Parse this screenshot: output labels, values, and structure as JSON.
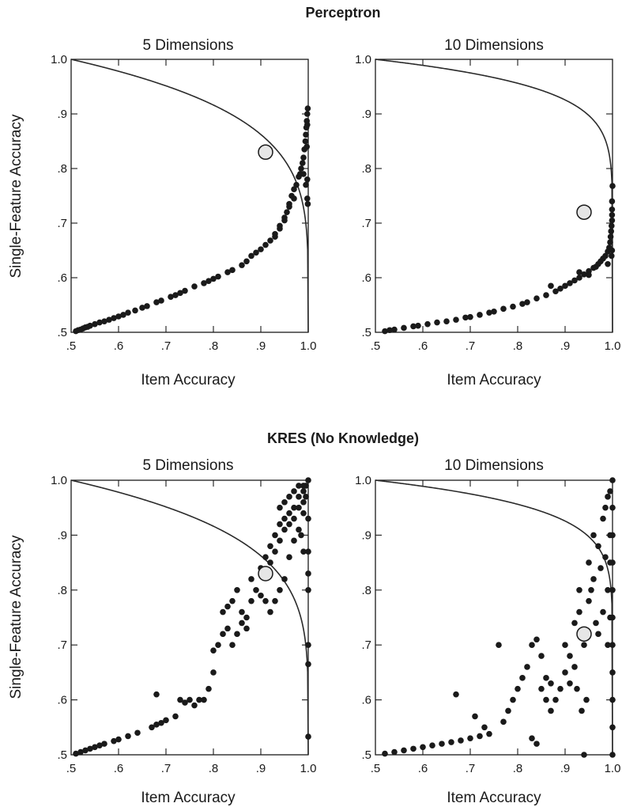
{
  "groups": [
    {
      "title": "Perceptron"
    },
    {
      "title": "KRES (No Knowledge)"
    }
  ],
  "xticks": [
    ".5",
    ".6",
    ".7",
    ".8",
    ".9",
    "1.0"
  ],
  "yticks": [
    ".5",
    ".6",
    ".7",
    ".8",
    ".9",
    "1.0"
  ],
  "chart_data": [
    {
      "type": "scatter",
      "group": "Perceptron",
      "title": "5 Dimensions",
      "xlabel": "Item Accuracy",
      "ylabel": "Single-Feature Accuracy",
      "xlim": [
        0.5,
        1.0
      ],
      "ylim": [
        0.5,
        1.0
      ],
      "curve_dimensions": 5,
      "highlight_point": [
        0.91,
        0.83
      ],
      "points": [
        [
          0.51,
          0.502
        ],
        [
          0.515,
          0.504
        ],
        [
          0.52,
          0.505
        ],
        [
          0.525,
          0.507
        ],
        [
          0.53,
          0.509
        ],
        [
          0.535,
          0.51
        ],
        [
          0.54,
          0.512
        ],
        [
          0.55,
          0.515
        ],
        [
          0.56,
          0.518
        ],
        [
          0.57,
          0.52
        ],
        [
          0.58,
          0.523
        ],
        [
          0.59,
          0.526
        ],
        [
          0.6,
          0.529
        ],
        [
          0.61,
          0.532
        ],
        [
          0.62,
          0.536
        ],
        [
          0.635,
          0.54
        ],
        [
          0.65,
          0.545
        ],
        [
          0.66,
          0.548
        ],
        [
          0.68,
          0.555
        ],
        [
          0.69,
          0.558
        ],
        [
          0.71,
          0.565
        ],
        [
          0.72,
          0.568
        ],
        [
          0.73,
          0.572
        ],
        [
          0.74,
          0.576
        ],
        [
          0.76,
          0.584
        ],
        [
          0.78,
          0.59
        ],
        [
          0.79,
          0.594
        ],
        [
          0.8,
          0.598
        ],
        [
          0.81,
          0.602
        ],
        [
          0.83,
          0.61
        ],
        [
          0.84,
          0.614
        ],
        [
          0.86,
          0.623
        ],
        [
          0.87,
          0.63
        ],
        [
          0.88,
          0.64
        ],
        [
          0.89,
          0.646
        ],
        [
          0.9,
          0.652
        ],
        [
          0.91,
          0.66
        ],
        [
          0.92,
          0.668
        ],
        [
          0.93,
          0.68
        ],
        [
          0.94,
          0.69
        ],
        [
          0.95,
          0.705
        ],
        [
          0.955,
          0.72
        ],
        [
          0.96,
          0.735
        ],
        [
          0.965,
          0.75
        ],
        [
          0.97,
          0.762
        ],
        [
          0.975,
          0.77
        ],
        [
          0.98,
          0.785
        ],
        [
          0.983,
          0.79
        ],
        [
          0.985,
          0.8
        ],
        [
          0.988,
          0.81
        ],
        [
          0.99,
          0.82
        ],
        [
          0.992,
          0.835
        ],
        [
          0.994,
          0.85
        ],
        [
          0.995,
          0.862
        ],
        [
          0.996,
          0.875
        ],
        [
          0.997,
          0.887
        ],
        [
          0.998,
          0.9
        ],
        [
          0.999,
          0.91
        ],
        [
          0.998,
          0.88
        ],
        [
          0.997,
          0.84
        ],
        [
          0.998,
          0.78
        ],
        [
          0.998,
          0.745
        ],
        [
          0.999,
          0.735
        ],
        [
          0.995,
          0.77
        ],
        [
          0.99,
          0.79
        ],
        [
          0.97,
          0.745
        ],
        [
          0.96,
          0.73
        ],
        [
          0.95,
          0.71
        ],
        [
          0.94,
          0.695
        ],
        [
          0.93,
          0.675
        ]
      ]
    },
    {
      "type": "scatter",
      "group": "Perceptron",
      "title": "10 Dimensions",
      "xlabel": "Item Accuracy",
      "ylabel": "",
      "xlim": [
        0.5,
        1.0
      ],
      "ylim": [
        0.5,
        1.0
      ],
      "curve_dimensions": 10,
      "highlight_point": [
        0.94,
        0.72
      ],
      "points": [
        [
          0.52,
          0.502
        ],
        [
          0.53,
          0.504
        ],
        [
          0.54,
          0.505
        ],
        [
          0.56,
          0.508
        ],
        [
          0.58,
          0.511
        ],
        [
          0.59,
          0.512
        ],
        [
          0.61,
          0.515
        ],
        [
          0.63,
          0.518
        ],
        [
          0.65,
          0.52
        ],
        [
          0.67,
          0.523
        ],
        [
          0.69,
          0.527
        ],
        [
          0.7,
          0.528
        ],
        [
          0.72,
          0.532
        ],
        [
          0.74,
          0.536
        ],
        [
          0.75,
          0.538
        ],
        [
          0.77,
          0.543
        ],
        [
          0.79,
          0.547
        ],
        [
          0.81,
          0.552
        ],
        [
          0.82,
          0.555
        ],
        [
          0.84,
          0.562
        ],
        [
          0.86,
          0.568
        ],
        [
          0.88,
          0.575
        ],
        [
          0.89,
          0.58
        ],
        [
          0.9,
          0.585
        ],
        [
          0.91,
          0.59
        ],
        [
          0.92,
          0.595
        ],
        [
          0.93,
          0.6
        ],
        [
          0.94,
          0.606
        ],
        [
          0.95,
          0.612
        ],
        [
          0.96,
          0.618
        ],
        [
          0.965,
          0.62
        ],
        [
          0.97,
          0.625
        ],
        [
          0.975,
          0.63
        ],
        [
          0.98,
          0.635
        ],
        [
          0.985,
          0.64
        ],
        [
          0.99,
          0.648
        ],
        [
          0.993,
          0.655
        ],
        [
          0.995,
          0.665
        ],
        [
          0.996,
          0.675
        ],
        [
          0.997,
          0.685
        ],
        [
          0.998,
          0.695
        ],
        [
          0.999,
          0.705
        ],
        [
          0.999,
          0.715
        ],
        [
          0.999,
          0.725
        ],
        [
          0.999,
          0.74
        ],
        [
          1.0,
          0.768
        ],
        [
          0.999,
          0.65
        ],
        [
          0.998,
          0.64
        ],
        [
          0.99,
          0.625
        ],
        [
          0.95,
          0.605
        ],
        [
          0.93,
          0.61
        ],
        [
          0.87,
          0.585
        ]
      ]
    },
    {
      "type": "scatter",
      "group": "KRES (No Knowledge)",
      "title": "5 Dimensions",
      "xlabel": "Item Accuracy",
      "ylabel": "Single-Feature Accuracy",
      "xlim": [
        0.5,
        1.0
      ],
      "ylim": [
        0.5,
        1.0
      ],
      "curve_dimensions": 5,
      "highlight_point": [
        0.91,
        0.83
      ],
      "points": [
        [
          0.51,
          0.502
        ],
        [
          0.52,
          0.505
        ],
        [
          0.53,
          0.508
        ],
        [
          0.54,
          0.511
        ],
        [
          0.55,
          0.514
        ],
        [
          0.56,
          0.517
        ],
        [
          0.57,
          0.52
        ],
        [
          0.59,
          0.525
        ],
        [
          0.6,
          0.528
        ],
        [
          0.62,
          0.534
        ],
        [
          0.64,
          0.54
        ],
        [
          0.67,
          0.55
        ],
        [
          0.68,
          0.555
        ],
        [
          0.69,
          0.558
        ],
        [
          0.7,
          0.563
        ],
        [
          0.72,
          0.57
        ],
        [
          0.68,
          0.61
        ],
        [
          0.73,
          0.6
        ],
        [
          0.74,
          0.595
        ],
        [
          0.75,
          0.6
        ],
        [
          0.76,
          0.59
        ],
        [
          0.77,
          0.6
        ],
        [
          0.78,
          0.6
        ],
        [
          0.79,
          0.62
        ],
        [
          0.8,
          0.65
        ],
        [
          0.8,
          0.69
        ],
        [
          0.81,
          0.7
        ],
        [
          0.82,
          0.72
        ],
        [
          0.82,
          0.76
        ],
        [
          0.83,
          0.77
        ],
        [
          0.83,
          0.73
        ],
        [
          0.84,
          0.78
        ],
        [
          0.84,
          0.7
        ],
        [
          0.85,
          0.72
        ],
        [
          0.85,
          0.8
        ],
        [
          0.86,
          0.74
        ],
        [
          0.86,
          0.76
        ],
        [
          0.87,
          0.73
        ],
        [
          0.87,
          0.75
        ],
        [
          0.88,
          0.78
        ],
        [
          0.88,
          0.82
        ],
        [
          0.89,
          0.8
        ],
        [
          0.9,
          0.79
        ],
        [
          0.9,
          0.84
        ],
        [
          0.91,
          0.78
        ],
        [
          0.91,
          0.86
        ],
        [
          0.92,
          0.85
        ],
        [
          0.92,
          0.88
        ],
        [
          0.93,
          0.87
        ],
        [
          0.93,
          0.9
        ],
        [
          0.94,
          0.89
        ],
        [
          0.94,
          0.92
        ],
        [
          0.95,
          0.91
        ],
        [
          0.95,
          0.93
        ],
        [
          0.96,
          0.94
        ],
        [
          0.96,
          0.92
        ],
        [
          0.97,
          0.95
        ],
        [
          0.97,
          0.93
        ],
        [
          0.98,
          0.97
        ],
        [
          0.98,
          0.95
        ],
        [
          0.99,
          0.98
        ],
        [
          0.99,
          0.96
        ],
        [
          0.995,
          0.99
        ],
        [
          1.0,
          1.0
        ],
        [
          0.995,
          0.97
        ],
        [
          0.99,
          0.94
        ],
        [
          0.98,
          0.91
        ],
        [
          0.97,
          0.89
        ],
        [
          0.96,
          0.86
        ],
        [
          0.95,
          0.82
        ],
        [
          0.94,
          0.8
        ],
        [
          0.93,
          0.78
        ],
        [
          0.92,
          0.76
        ],
        [
          0.985,
          0.9
        ],
        [
          0.99,
          0.87
        ],
        [
          1.0,
          0.93
        ],
        [
          1.0,
          0.87
        ],
        [
          1.0,
          0.83
        ],
        [
          1.0,
          0.8
        ],
        [
          1.0,
          0.7
        ],
        [
          1.0,
          0.665
        ],
        [
          1.0,
          0.533
        ],
        [
          0.99,
          0.99
        ],
        [
          0.98,
          0.99
        ],
        [
          0.97,
          0.98
        ],
        [
          0.96,
          0.97
        ],
        [
          0.95,
          0.96
        ],
        [
          0.94,
          0.95
        ]
      ]
    },
    {
      "type": "scatter",
      "group": "KRES (No Knowledge)",
      "title": "10 Dimensions",
      "xlabel": "Item Accuracy",
      "ylabel": "",
      "xlim": [
        0.5,
        1.0
      ],
      "ylim": [
        0.5,
        1.0
      ],
      "curve_dimensions": 10,
      "highlight_point": [
        0.94,
        0.72
      ],
      "points": [
        [
          0.52,
          0.502
        ],
        [
          0.54,
          0.505
        ],
        [
          0.56,
          0.508
        ],
        [
          0.58,
          0.511
        ],
        [
          0.6,
          0.514
        ],
        [
          0.62,
          0.517
        ],
        [
          0.64,
          0.52
        ],
        [
          0.66,
          0.523
        ],
        [
          0.68,
          0.526
        ],
        [
          0.7,
          0.53
        ],
        [
          0.72,
          0.534
        ],
        [
          0.74,
          0.538
        ],
        [
          0.67,
          0.61
        ],
        [
          0.71,
          0.57
        ],
        [
          0.73,
          0.55
        ],
        [
          0.76,
          0.7
        ],
        [
          0.77,
          0.56
        ],
        [
          0.78,
          0.58
        ],
        [
          0.79,
          0.6
        ],
        [
          0.8,
          0.62
        ],
        [
          0.81,
          0.64
        ],
        [
          0.82,
          0.66
        ],
        [
          0.83,
          0.7
        ],
        [
          0.83,
          0.53
        ],
        [
          0.84,
          0.71
        ],
        [
          0.84,
          0.52
        ],
        [
          0.85,
          0.68
        ],
        [
          0.85,
          0.62
        ],
        [
          0.86,
          0.64
        ],
        [
          0.86,
          0.6
        ],
        [
          0.87,
          0.58
        ],
        [
          0.87,
          0.63
        ],
        [
          0.88,
          0.6
        ],
        [
          0.89,
          0.62
        ],
        [
          0.9,
          0.65
        ],
        [
          0.9,
          0.7
        ],
        [
          0.91,
          0.63
        ],
        [
          0.91,
          0.68
        ],
        [
          0.92,
          0.74
        ],
        [
          0.92,
          0.66
        ],
        [
          0.93,
          0.76
        ],
        [
          0.93,
          0.8
        ],
        [
          0.94,
          0.7
        ],
        [
          0.94,
          0.5
        ],
        [
          0.95,
          0.85
        ],
        [
          0.95,
          0.78
        ],
        [
          0.96,
          0.9
        ],
        [
          0.96,
          0.82
        ],
        [
          0.97,
          0.88
        ],
        [
          0.97,
          0.72
        ],
        [
          0.98,
          0.93
        ],
        [
          0.98,
          0.76
        ],
        [
          0.99,
          0.97
        ],
        [
          0.99,
          0.8
        ],
        [
          0.99,
          0.7
        ],
        [
          0.995,
          0.98
        ],
        [
          0.995,
          0.9
        ],
        [
          0.995,
          0.85
        ],
        [
          0.995,
          0.75
        ],
        [
          1.0,
          1.0
        ],
        [
          1.0,
          0.95
        ],
        [
          1.0,
          0.9
        ],
        [
          1.0,
          0.85
        ],
        [
          1.0,
          0.8
        ],
        [
          1.0,
          0.75
        ],
        [
          1.0,
          0.7
        ],
        [
          1.0,
          0.65
        ],
        [
          1.0,
          0.6
        ],
        [
          1.0,
          0.55
        ],
        [
          1.0,
          0.5
        ],
        [
          0.985,
          0.95
        ],
        [
          0.985,
          0.86
        ],
        [
          0.975,
          0.84
        ],
        [
          0.965,
          0.74
        ],
        [
          0.955,
          0.8
        ],
        [
          0.945,
          0.6
        ],
        [
          0.935,
          0.58
        ],
        [
          0.925,
          0.62
        ]
      ]
    }
  ]
}
